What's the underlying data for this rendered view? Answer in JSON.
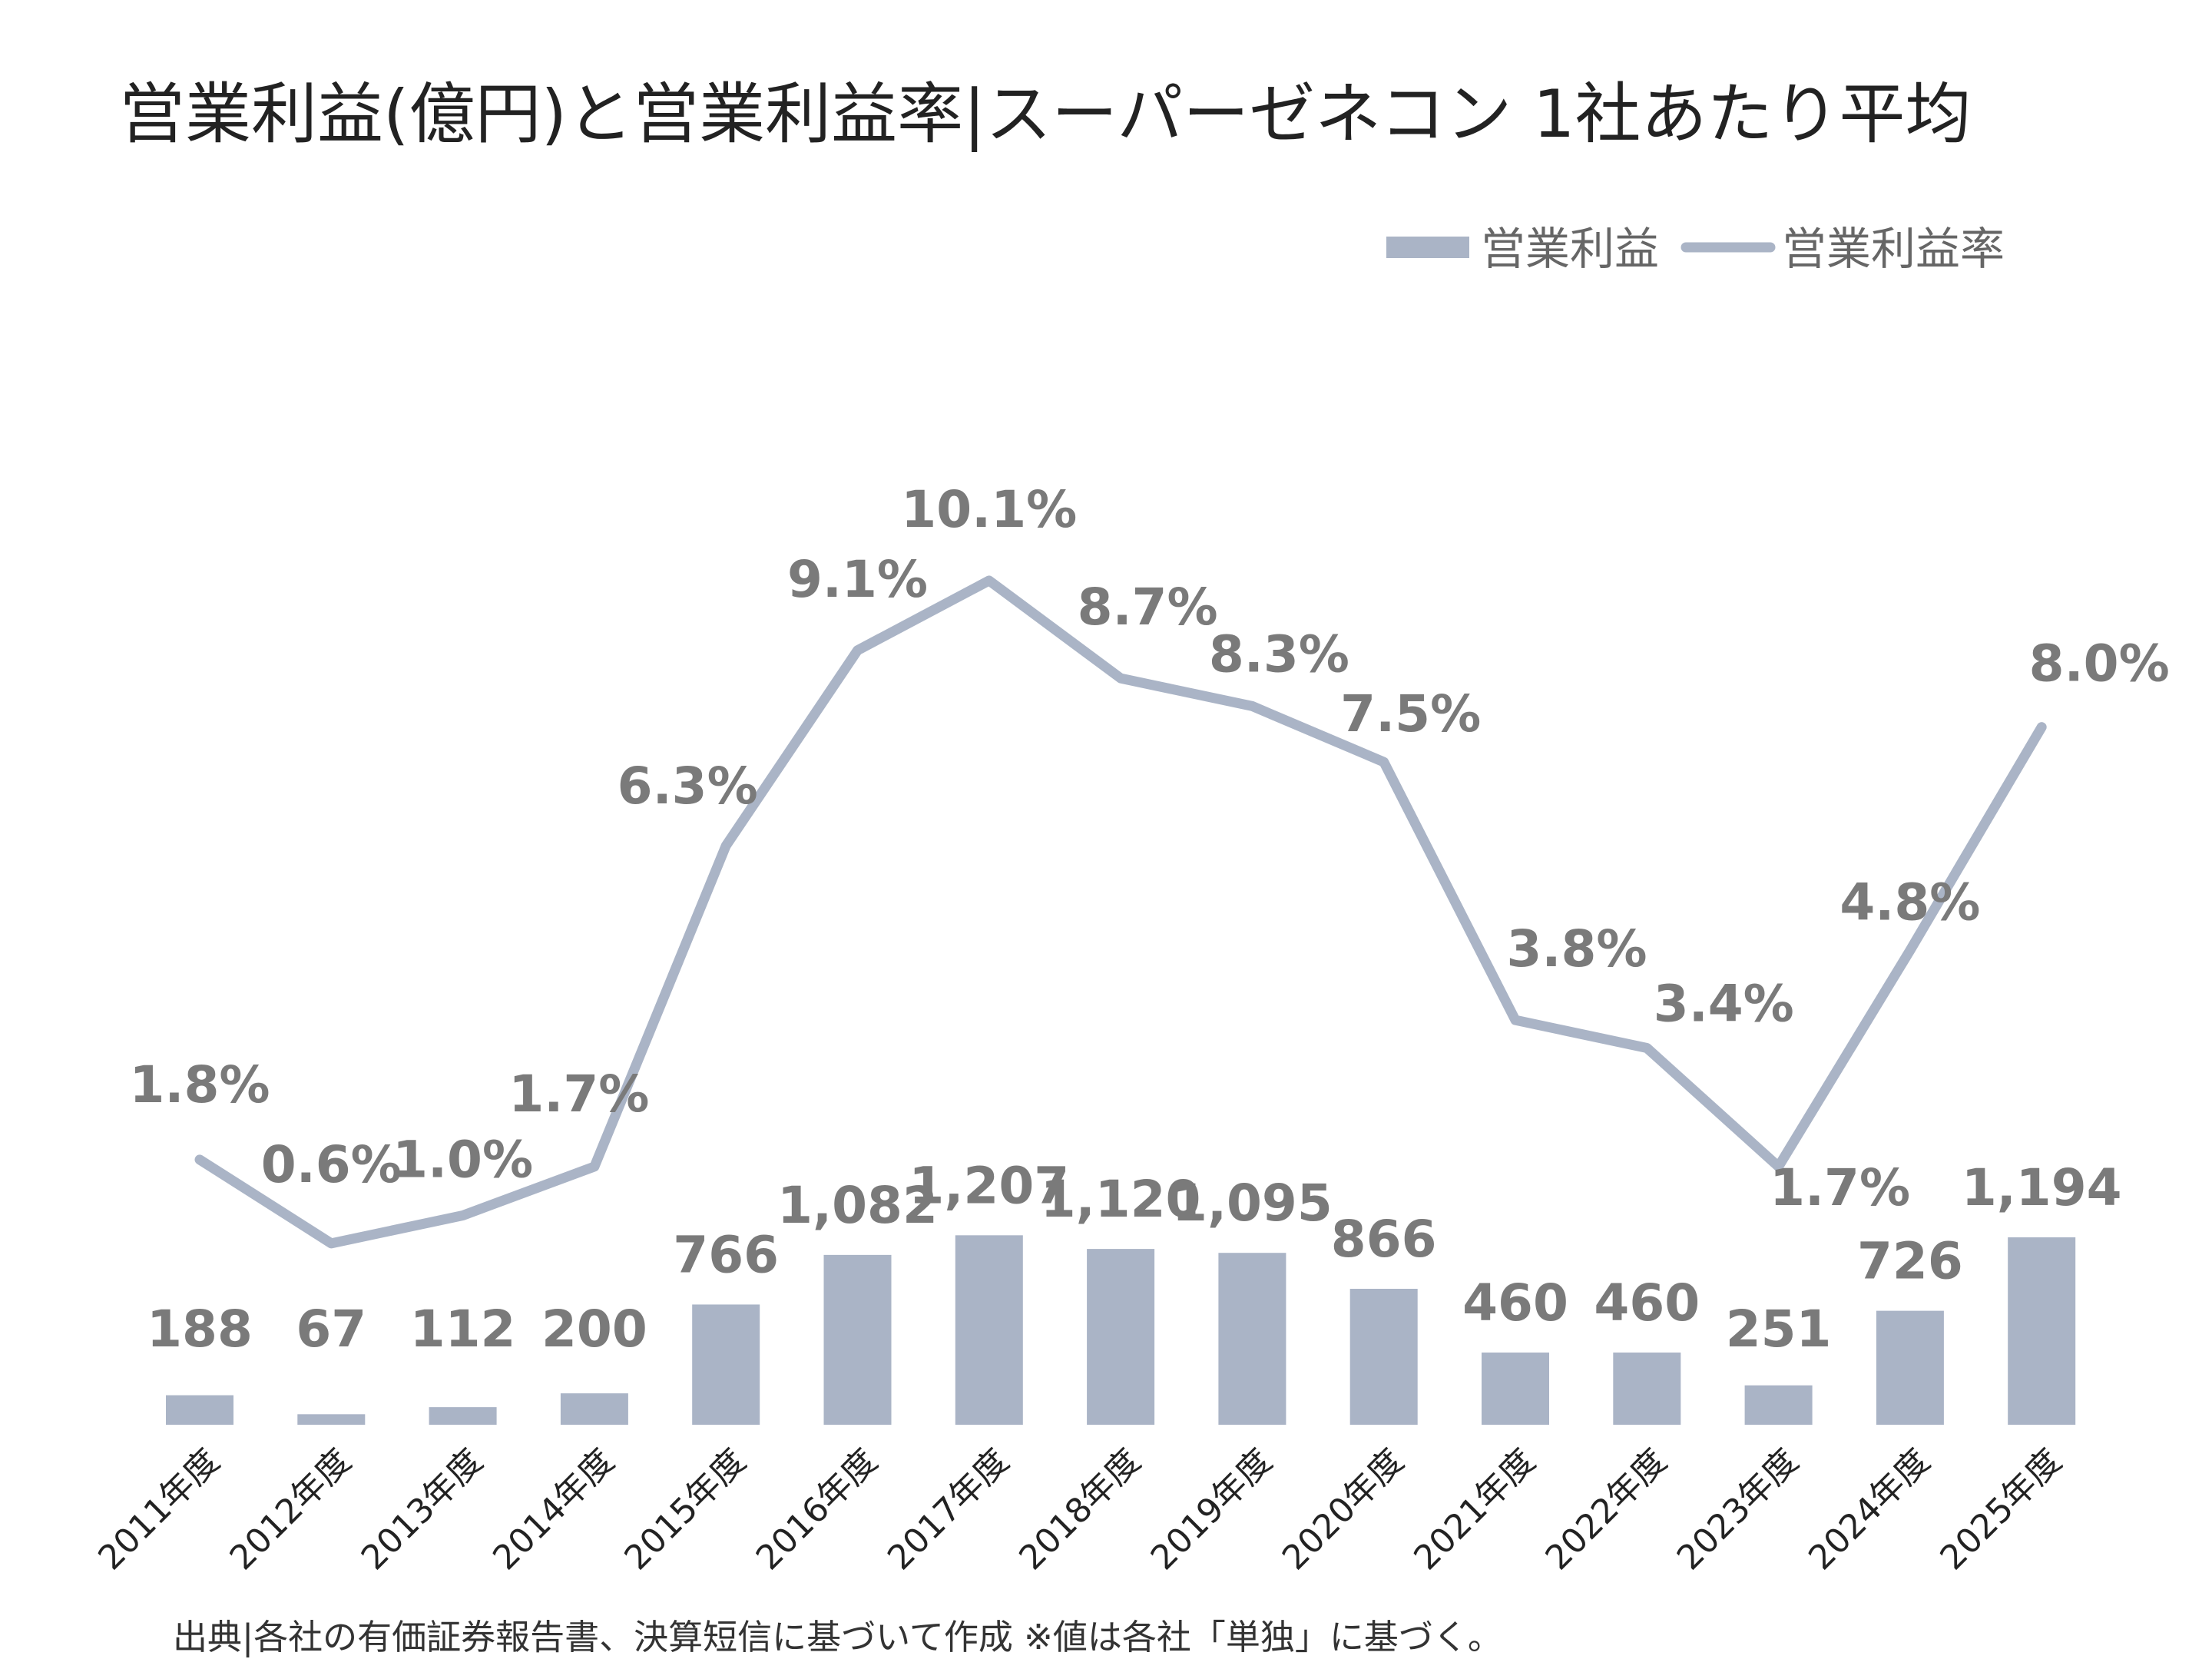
{
  "title": "営業利益(億円)と営業利益率|スーパーゼネコン 1社あたり平均",
  "source": "出典|各社の有価証券報告書、決算短信に基づいて作成 ※値は各社「単独」に基づく。",
  "chart_data": {
    "type": "bar+line",
    "categories": [
      "2011年度",
      "2012年度",
      "2013年度",
      "2014年度",
      "2015年度",
      "2016年度",
      "2017年度",
      "2018年度",
      "2019年度",
      "2020年度",
      "2021年度",
      "2022年度",
      "2023年度",
      "2024年度",
      "2025年度"
    ],
    "series": [
      {
        "name": "営業利益",
        "type": "bar",
        "axis": "left",
        "values": [
          188,
          67,
          112,
          200,
          766,
          1082,
          1207,
          1120,
          1095,
          866,
          460,
          460,
          251,
          726,
          1194
        ],
        "labels": [
          "188",
          "67",
          "112",
          "200",
          "766",
          "1,082",
          "1,207",
          "1,120",
          "1,095",
          "866",
          "460",
          "460",
          "251",
          "726",
          "1,194"
        ]
      },
      {
        "name": "営業利益率",
        "type": "line",
        "axis": "right",
        "values": [
          1.8,
          0.6,
          1.0,
          1.7,
          6.3,
          9.1,
          10.1,
          8.7,
          8.3,
          7.5,
          3.8,
          3.4,
          1.7,
          4.8,
          8.0
        ],
        "labels": [
          "1.8%",
          "0.6%",
          "1.0%",
          "1.7%",
          "6.3%",
          "9.1%",
          "10.1%",
          "8.7%",
          "8.3%",
          "7.5%",
          "3.8%",
          "3.4%",
          "1.7%",
          "4.8%",
          "8.0%"
        ]
      }
    ],
    "y_left_range": [
      0,
      8000
    ],
    "y_right_range": [
      -2,
      16
    ],
    "legend_position": "top-right",
    "grid": false,
    "colors": {
      "bar": "#aab4c6",
      "line": "#aab4c6",
      "label": "#7a7a7a",
      "tick": "#222222"
    }
  }
}
